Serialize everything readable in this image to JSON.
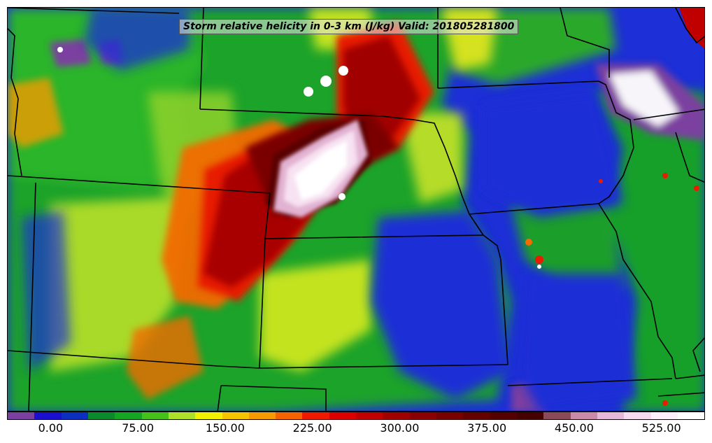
{
  "title": "Storm relative helicity in 0-3 km (J/kg) Valid: 201805281800",
  "colorbar": {
    "colors": [
      "#7b3fa0",
      "#1a0ecf",
      "#0b2fbf",
      "#0a8a2a",
      "#14a622",
      "#45c21a",
      "#aee02a",
      "#f0f000",
      "#f5c400",
      "#f59a00",
      "#f56200",
      "#ee1a00",
      "#dd0000",
      "#c00000",
      "#a00000",
      "#8a0000",
      "#780000",
      "#650000",
      "#540000",
      "#450000",
      "#8a4a5a",
      "#c88aa8",
      "#e4b8d8",
      "#f6daf0",
      "#fdf0fa",
      "#ffffff"
    ],
    "tick_labels": [
      "0.00",
      "75.00",
      "150.00",
      "225.00",
      "300.00",
      "375.00",
      "450.00",
      "525.00"
    ],
    "min": -37.5,
    "max": 562.5,
    "tick_values": [
      0,
      75,
      150,
      225,
      300,
      375,
      450,
      525
    ]
  },
  "map": {
    "region": "Central United States",
    "projection": "lambert-conformal",
    "overlay": "state boundaries"
  }
}
